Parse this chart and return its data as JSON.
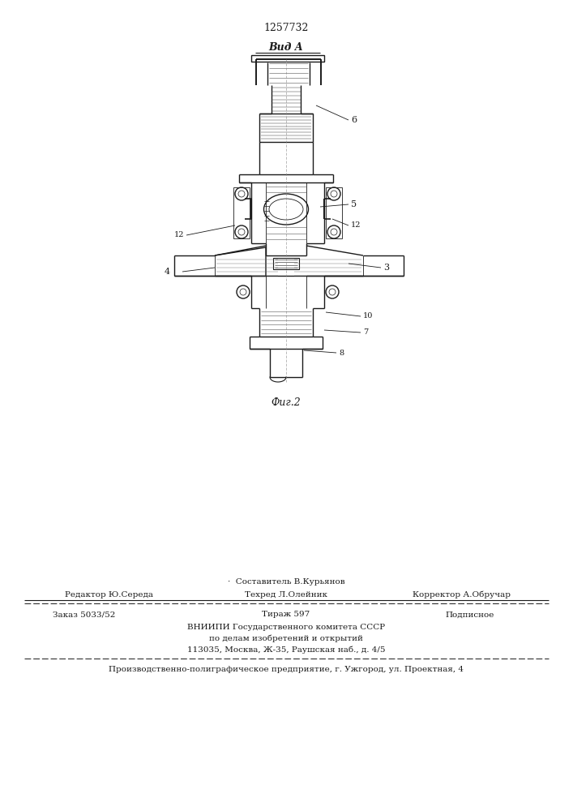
{
  "patent_number": "1257732",
  "fig_label": "Фиг.2",
  "view_label": "Вид A",
  "bg_color": "#ffffff",
  "footer_line1_left": "Редактор Ю.Середа",
  "footer_line1_center": "Техред Л.Олейник",
  "footer_line1_right": "Корректор А.Обручар",
  "footer_composer": "·  Составитель В.Курьянов",
  "footer_order": "Заказ 5033/52",
  "footer_tirazh": "Тираж 597",
  "footer_podpisnoe": "Подписное",
  "footer_vnipi": "ВНИИПИ Государственного комитета СССР",
  "footer_po_delam": "по делам изобретений и открытий",
  "footer_address": "113035, Москва, Ж-35, Раушская наб., д. 4/5",
  "footer_production": "Производственно-полиграфическое предприятие, г. Ужгород, ул. Проектная, 4"
}
